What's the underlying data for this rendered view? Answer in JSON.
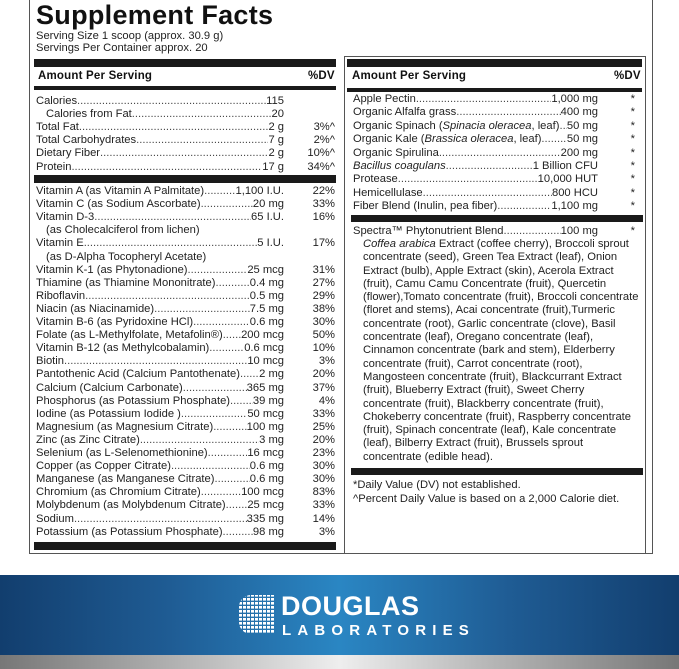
{
  "title": "Supplement Facts",
  "serving_size": "Serving Size 1 scoop (approx. 30.9 g)",
  "servings_per_container": "Servings Per Container approx. 20",
  "header": {
    "amount": "Amount Per Serving",
    "dv": "%DV"
  },
  "left": {
    "macros": [
      {
        "name": "Calories",
        "amount": "115",
        "dv": ""
      },
      {
        "name": "Calories from Fat",
        "amount": "20",
        "dv": "",
        "indent": true
      },
      {
        "name": "Total Fat",
        "amount": "2 g",
        "dv": "3%^"
      },
      {
        "name": "Total Carbohydrates",
        "amount": "7 g",
        "dv": "2%^"
      },
      {
        "name": "Dietary Fiber",
        "amount": "2 g",
        "dv": "10%^"
      },
      {
        "name": "Protein",
        "amount": "17 g",
        "dv": "34%^"
      }
    ],
    "nutrients": [
      {
        "name": "Vitamin A (as Vitamin A Palmitate)",
        "amount": "1,100 I.U.",
        "dv": "22%"
      },
      {
        "name": "Vitamin C (as Sodium Ascorbate)",
        "amount": "20 mg",
        "dv": "33%"
      },
      {
        "name": "Vitamin D-3",
        "amount": "65 I.U.",
        "dv": "16%"
      },
      {
        "name": "(as Cholecalciferol from lichen)",
        "amount": "",
        "dv": "",
        "indent": true,
        "noleader": true
      },
      {
        "name": "Vitamin E",
        "amount": "5 I.U.",
        "dv": "17%"
      },
      {
        "name": "(as D-Alpha Tocopheryl Acetate)",
        "amount": "",
        "dv": "",
        "indent": true,
        "noleader": true
      },
      {
        "name": "Vitamin K-1 (as Phytonadione)",
        "amount": "25 mcg",
        "dv": "31%"
      },
      {
        "name": "Thiamine (as Thiamine Mononitrate)",
        "amount": "0.4 mg",
        "dv": "27%"
      },
      {
        "name": "Riboflavin",
        "amount": "0.5 mg",
        "dv": "29%"
      },
      {
        "name": "Niacin (as Niacinamide)",
        "amount": "7.5 mg",
        "dv": "38%"
      },
      {
        "name": "Vitamin B-6 (as Pyridoxine HCl)",
        "amount": "0.6 mg",
        "dv": "30%"
      },
      {
        "name": "Folate (as L-Methylfolate, Metafolin®)",
        "amount": "200 mcg",
        "dv": "50%"
      },
      {
        "name": "Vitamin B-12 (as Methylcobalamin)",
        "amount": "0.6 mcg",
        "dv": "10%"
      },
      {
        "name": "Biotin",
        "amount": "10 mcg",
        "dv": "3%"
      },
      {
        "name": "Pantothenic Acid (Calcium Pantothenate)",
        "amount": "2 mg",
        "dv": "20%"
      },
      {
        "name": "Calcium (Calcium Carbonate)",
        "amount": "365 mg",
        "dv": "37%"
      },
      {
        "name": "Phosphorus (as Potassium Phosphate)",
        "amount": "39 mg",
        "dv": "4%"
      },
      {
        "name": "Iodine (as Potassium Iodide )",
        "amount": "50 mcg",
        "dv": "33%"
      },
      {
        "name": "Magnesium (as Magnesium Citrate)",
        "amount": "100 mg",
        "dv": "25%"
      },
      {
        "name": "Zinc (as Zinc Citrate)",
        "amount": "3 mg",
        "dv": "20%"
      },
      {
        "name": "Selenium (as L-Selenomethionine)",
        "amount": "16 mcg",
        "dv": "23%"
      },
      {
        "name": "Copper (as Copper Citrate)",
        "amount": "0.6 mg",
        "dv": "30%"
      },
      {
        "name": "Manganese (as Manganese Citrate)",
        "amount": "0.6 mg",
        "dv": "30%"
      },
      {
        "name": "Chromium (as Chromium Citrate)",
        "amount": "100 mcg",
        "dv": "83%"
      },
      {
        "name": "Molybdenum (as Molybdenum Citrate)",
        "amount": "25 mcg",
        "dv": "33%"
      },
      {
        "name": "Sodium",
        "amount": "335 mg",
        "dv": "14%"
      },
      {
        "name": "Potassium (as Potassium Phosphate)",
        "amount": "98 mg",
        "dv": "3%"
      }
    ]
  },
  "right": {
    "items": [
      {
        "name": [
          {
            "t": "Apple Pectin"
          }
        ],
        "amount": "1,000 mg",
        "dv": "*"
      },
      {
        "name": [
          {
            "t": "Organic Alfalfa grass"
          }
        ],
        "amount": "400 mg",
        "dv": "*"
      },
      {
        "name": [
          {
            "t": "Organic Spinach ("
          },
          {
            "t": "Spinacia oleracea",
            "i": true
          },
          {
            "t": ", leaf)"
          }
        ],
        "amount": "50 mg",
        "dv": "*"
      },
      {
        "name": [
          {
            "t": "Organic Kale ("
          },
          {
            "t": "Brassica oleracea",
            "i": true
          },
          {
            "t": ", leaf)"
          }
        ],
        "amount": "50 mg",
        "dv": "*"
      },
      {
        "name": [
          {
            "t": "Organic Spirulina"
          }
        ],
        "amount": "200 mg",
        "dv": "*"
      },
      {
        "name": [
          {
            "t": "Bacillus coagulans",
            "i": true
          }
        ],
        "amount": "1 Billion CFU",
        "dv": "*"
      },
      {
        "name": [
          {
            "t": "Protease"
          }
        ],
        "amount": "10,000 HUT",
        "dv": "*"
      },
      {
        "name": [
          {
            "t": "Hemicellulase"
          }
        ],
        "amount": "800 HCU",
        "dv": "*"
      },
      {
        "name": [
          {
            "t": "Fiber Blend (Inulin, pea fiber)"
          }
        ],
        "amount": "1,100 mg",
        "dv": "*"
      }
    ],
    "blend": {
      "name": "Spectra™ Phytonutrient Blend",
      "amount": "100 mg",
      "dv": "*",
      "ingredients_italic": "Coffea arabica",
      "ingredients": " Extract (coffee cherry), Broccoli sprout concentrate (seed), Green Tea Extract (leaf), Onion Extract (bulb), Apple Extract (skin), Acerola Extract (fruit), Camu Camu Concentrate (fruit), Quercetin (flower),Tomato concentrate (fruit), Broccoli concentrate (floret and stems), Acai concentrate (fruit),Turmeric concentrate (root), Garlic concentrate (clove), Basil concentrate (leaf), Oregano concentrate (leaf), Cinnamon concentrate (bark and stem), Elderberry concentrate (fruit), Carrot concentrate (root), Mangosteen concentrate (fruit), Blackcurrant Extract (fruit), Blueberry Extract (fruit), Sweet Cherry concentrate (fruit), Blackberry concentrate (fruit), Chokeberry concentrate (fruit), Raspberry concentrate (fruit), Spinach concentrate (leaf), Kale concentrate (leaf), Bilberry Extract (fruit), Brussels sprout concentrate (edible head)."
    },
    "footnotes": [
      "*Daily Value (DV) not established.",
      "^Percent Daily Value is based on a 2,000 Calorie diet."
    ]
  },
  "brand": {
    "name": "DOUGLAS",
    "sub": "LABORATORIES",
    "colors": {
      "band": "#1f5c94",
      "band_light": "#2a86c3"
    }
  }
}
